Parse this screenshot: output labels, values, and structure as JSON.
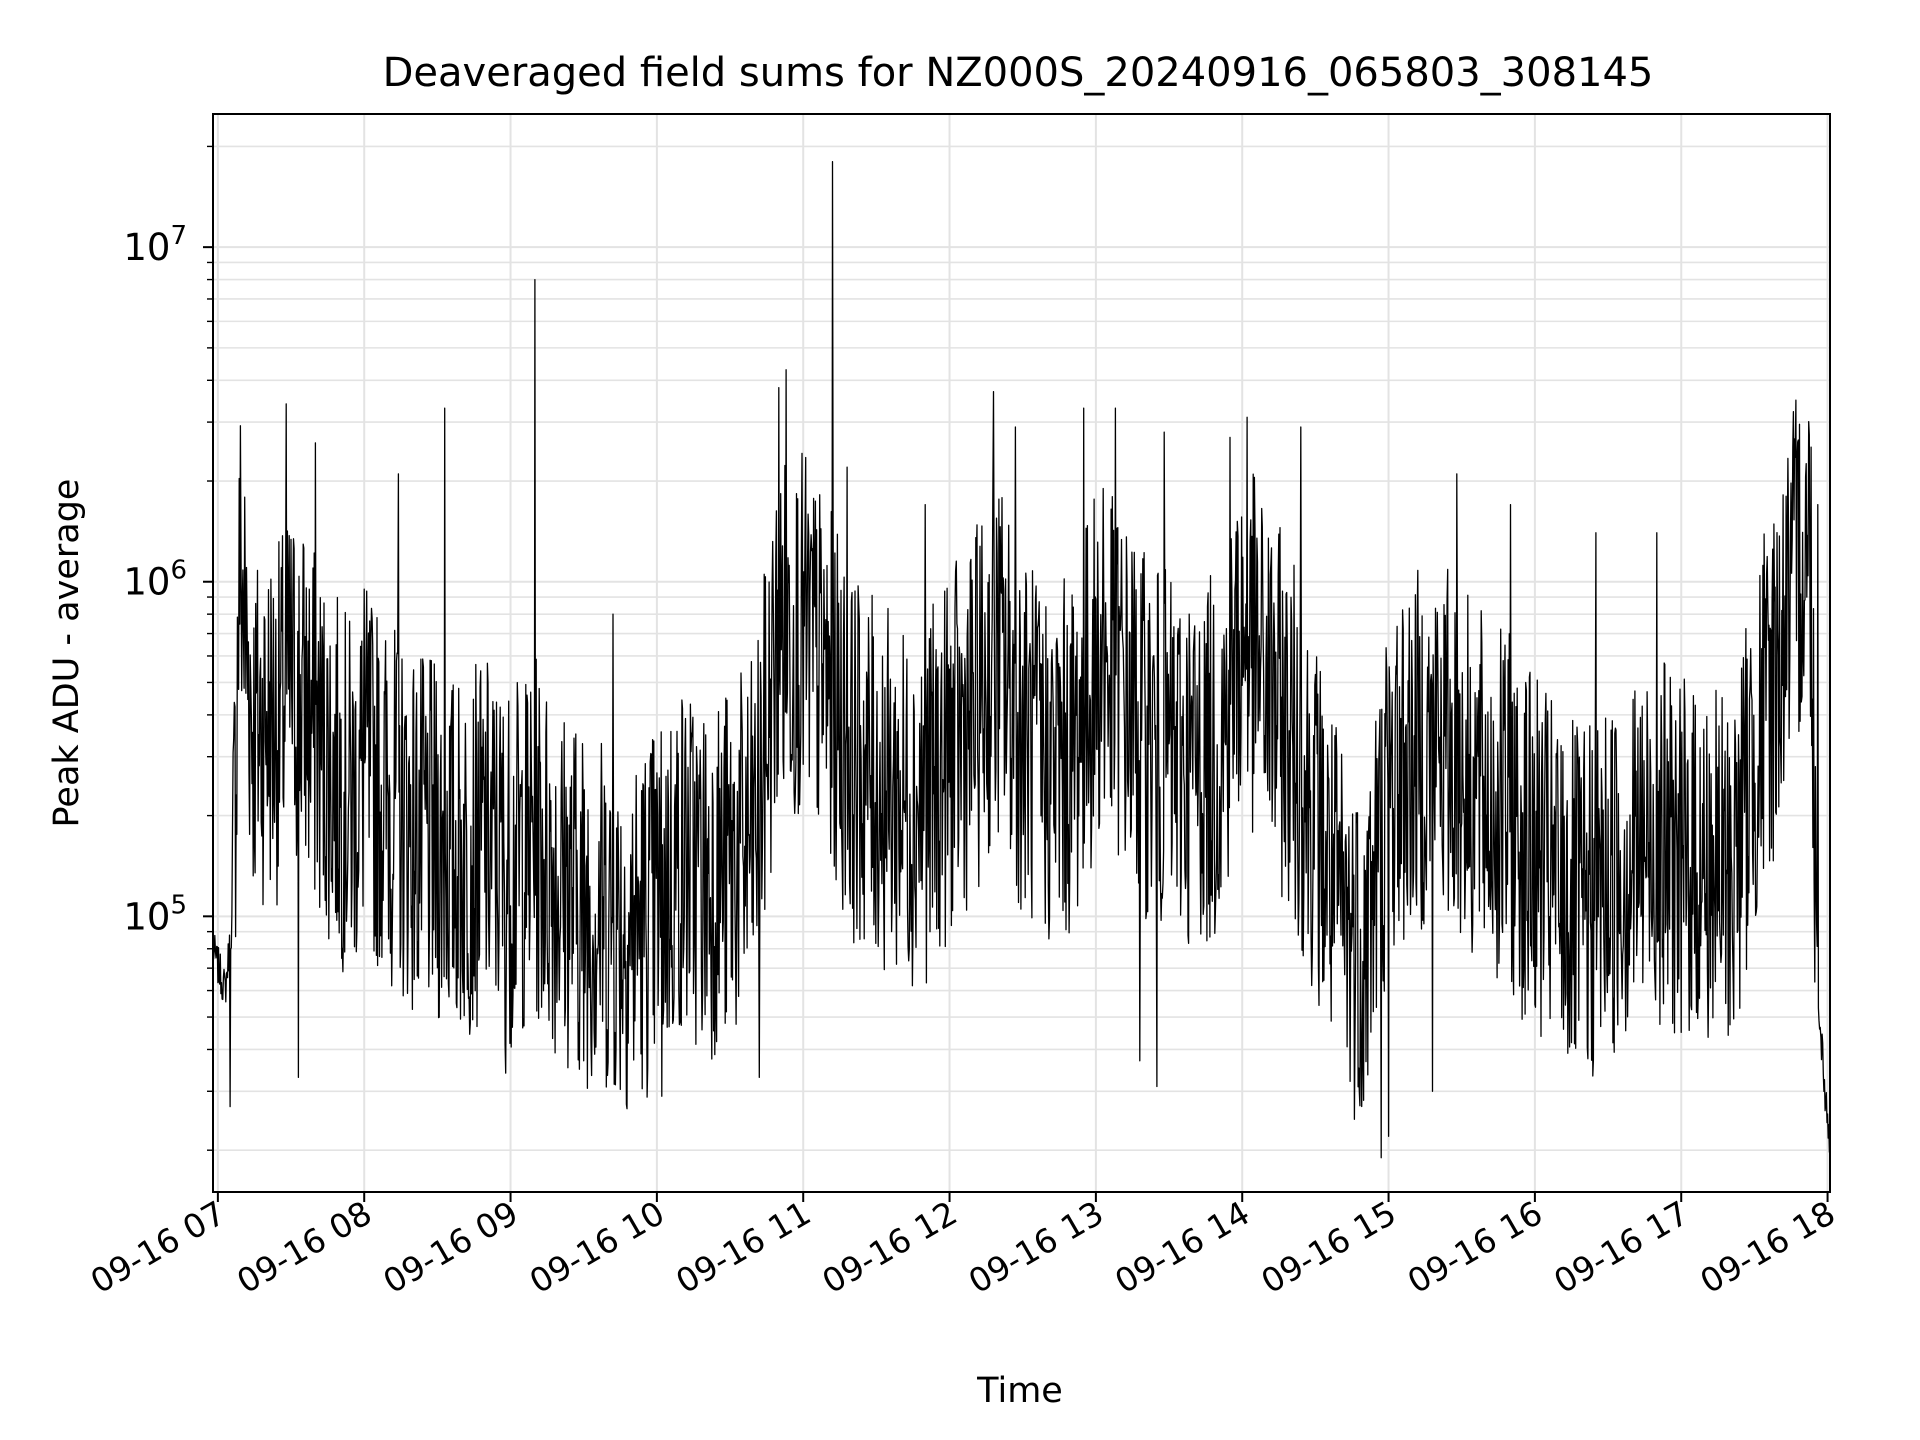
{
  "chart_data": {
    "type": "line",
    "title": "Deaveraged field sums for NZ000S_20240916_065803_308145",
    "xlabel": "Time",
    "ylabel": "Peak ADU - average",
    "yscale": "log",
    "ylim": [
      15000,
      25000000
    ],
    "xlim": [
      "2024-09-16 06:58",
      "2024-09-16 18:01"
    ],
    "grid": true,
    "legend": "none",
    "x_ticks": [
      "09-16 07",
      "09-16 08",
      "09-16 09",
      "09-16 10",
      "09-16 11",
      "09-16 12",
      "09-16 13",
      "09-16 14",
      "09-16 15",
      "09-16 16",
      "09-16 17",
      "09-16 18"
    ],
    "y_ticks": [
      {
        "base": "10",
        "exp": "5",
        "value": 100000
      },
      {
        "base": "10",
        "exp": "6",
        "value": 1000000
      },
      {
        "base": "10",
        "exp": "7",
        "value": 10000000
      }
    ],
    "series": [
      {
        "color": "#000000",
        "x": [
          "2024-09-16 06:58",
          "2024-09-16 07:03",
          "2024-09-16 07:06",
          "2024-09-16 07:09",
          "2024-09-16 07:12",
          "2024-09-16 07:15",
          "2024-09-16 07:20",
          "2024-09-16 07:25",
          "2024-09-16 07:30",
          "2024-09-16 07:35",
          "2024-09-16 07:40",
          "2024-09-16 07:45",
          "2024-09-16 07:50",
          "2024-09-16 07:55",
          "2024-09-16 08:00",
          "2024-09-16 08:10",
          "2024-09-16 08:20",
          "2024-09-16 08:30",
          "2024-09-16 08:40",
          "2024-09-16 08:50",
          "2024-09-16 09:00",
          "2024-09-16 09:10",
          "2024-09-16 09:20",
          "2024-09-16 09:30",
          "2024-09-16 09:40",
          "2024-09-16 09:50",
          "2024-09-16 10:00",
          "2024-09-16 10:10",
          "2024-09-16 10:20",
          "2024-09-16 10:30",
          "2024-09-16 10:40",
          "2024-09-16 10:50",
          "2024-09-16 11:00",
          "2024-09-16 11:10",
          "2024-09-16 11:20",
          "2024-09-16 11:30",
          "2024-09-16 11:40",
          "2024-09-16 11:50",
          "2024-09-16 12:00",
          "2024-09-16 12:10",
          "2024-09-16 12:20",
          "2024-09-16 12:30",
          "2024-09-16 12:40",
          "2024-09-16 12:50",
          "2024-09-16 13:00",
          "2024-09-16 13:10",
          "2024-09-16 13:20",
          "2024-09-16 13:30",
          "2024-09-16 13:40",
          "2024-09-16 13:50",
          "2024-09-16 14:00",
          "2024-09-16 14:10",
          "2024-09-16 14:20",
          "2024-09-16 14:30",
          "2024-09-16 14:40",
          "2024-09-16 14:50",
          "2024-09-16 15:00",
          "2024-09-16 15:10",
          "2024-09-16 15:20",
          "2024-09-16 15:30",
          "2024-09-16 15:40",
          "2024-09-16 15:50",
          "2024-09-16 16:00",
          "2024-09-16 16:10",
          "2024-09-16 16:20",
          "2024-09-16 16:30",
          "2024-09-16 16:40",
          "2024-09-16 16:50",
          "2024-09-16 17:00",
          "2024-09-16 17:10",
          "2024-09-16 17:20",
          "2024-09-16 17:30",
          "2024-09-16 17:40",
          "2024-09-16 17:50",
          "2024-09-16 17:53",
          "2024-09-16 17:56",
          "2024-09-16 17:59",
          "2024-09-16 18:01"
        ],
        "values": [
          80000,
          60000,
          100000,
          1200000,
          600000,
          350000,
          400000,
          380000,
          500000,
          450000,
          350000,
          300000,
          250000,
          220000,
          280000,
          220000,
          180000,
          160000,
          150000,
          170000,
          140000,
          170000,
          130000,
          110000,
          100000,
          90000,
          110000,
          150000,
          130000,
          140000,
          170000,
          700000,
          700000,
          500000,
          300000,
          250000,
          220000,
          220000,
          300000,
          400000,
          600000,
          350000,
          280000,
          300000,
          550000,
          500000,
          350000,
          300000,
          280000,
          300000,
          700000,
          500000,
          350000,
          200000,
          100000,
          80000,
          250000,
          300000,
          350000,
          280000,
          220000,
          200000,
          150000,
          120000,
          100000,
          130000,
          150000,
          170000,
          150000,
          140000,
          130000,
          300000,
          600000,
          1300000,
          1300000,
          60000,
          30000,
          20000
        ],
        "spikes": [
          {
            "x": "2024-09-16 07:28",
            "y": 3400000
          },
          {
            "x": "2024-09-16 07:40",
            "y": 2600000
          },
          {
            "x": "2024-09-16 08:00",
            "y": 950000
          },
          {
            "x": "2024-09-16 08:14",
            "y": 2100000
          },
          {
            "x": "2024-09-16 08:33",
            "y": 3300000
          },
          {
            "x": "2024-09-16 09:10",
            "y": 8000000
          },
          {
            "x": "2024-09-16 09:42",
            "y": 800000
          },
          {
            "x": "2024-09-16 10:50",
            "y": 3800000
          },
          {
            "x": "2024-09-16 10:53",
            "y": 4300000
          },
          {
            "x": "2024-09-16 11:12",
            "y": 18000000
          },
          {
            "x": "2024-09-16 11:18",
            "y": 2200000
          },
          {
            "x": "2024-09-16 11:50",
            "y": 1700000
          },
          {
            "x": "2024-09-16 12:18",
            "y": 3700000
          },
          {
            "x": "2024-09-16 12:27",
            "y": 2900000
          },
          {
            "x": "2024-09-16 12:55",
            "y": 3300000
          },
          {
            "x": "2024-09-16 13:03",
            "y": 1900000
          },
          {
            "x": "2024-09-16 13:08",
            "y": 3300000
          },
          {
            "x": "2024-09-16 13:28",
            "y": 2800000
          },
          {
            "x": "2024-09-16 13:55",
            "y": 2700000
          },
          {
            "x": "2024-09-16 14:02",
            "y": 3100000
          },
          {
            "x": "2024-09-16 14:24",
            "y": 2900000
          },
          {
            "x": "2024-09-16 15:28",
            "y": 2100000
          },
          {
            "x": "2024-09-16 15:50",
            "y": 1700000
          },
          {
            "x": "2024-09-16 16:25",
            "y": 1400000
          },
          {
            "x": "2024-09-16 16:50",
            "y": 1400000
          },
          {
            "x": "2024-09-16 17:43",
            "y": 1800000
          },
          {
            "x": "2024-09-16 17:56",
            "y": 1700000
          }
        ],
        "dips": [
          {
            "x": "2024-09-16 07:05",
            "y": 27000
          },
          {
            "x": "2024-09-16 07:33",
            "y": 33000
          },
          {
            "x": "2024-09-16 08:58",
            "y": 34000
          },
          {
            "x": "2024-09-16 09:30",
            "y": 37000
          },
          {
            "x": "2024-09-16 10:02",
            "y": 29000
          },
          {
            "x": "2024-09-16 10:42",
            "y": 33000
          },
          {
            "x": "2024-09-16 13:18",
            "y": 37000
          },
          {
            "x": "2024-09-16 13:25",
            "y": 31000
          },
          {
            "x": "2024-09-16 14:48",
            "y": 30000
          },
          {
            "x": "2024-09-16 14:57",
            "y": 19000
          },
          {
            "x": "2024-09-16 15:00",
            "y": 22000
          },
          {
            "x": "2024-09-16 15:18",
            "y": 30000
          },
          {
            "x": "2024-09-16 17:00",
            "y": 45000
          }
        ]
      }
    ]
  }
}
